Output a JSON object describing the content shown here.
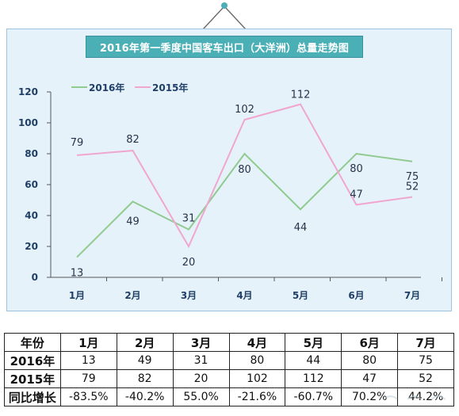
{
  "chart_data": {
    "type": "line",
    "title": "2016年第一季度中国客车出口（大洋洲）总量走势图",
    "categories": [
      "1月",
      "2月",
      "3月",
      "4月",
      "5月",
      "6月",
      "7月"
    ],
    "ylim": [
      0,
      120
    ],
    "yticks": [
      "0",
      "20",
      "40",
      "60",
      "80",
      "100",
      "120"
    ],
    "legend_position": "top-left",
    "grid": false,
    "series": [
      {
        "name": "2016年",
        "color": "#8fca8f",
        "values": [
          13,
          49,
          31,
          80,
          44,
          80,
          75
        ],
        "labels": [
          "13",
          "49",
          "31",
          "80",
          "44",
          "80",
          "75"
        ]
      },
      {
        "name": "2015年",
        "color": "#f0a6cf",
        "values": [
          79,
          82,
          20,
          102,
          112,
          47,
          52
        ],
        "labels": [
          "79",
          "82",
          "20",
          "102",
          "112",
          "47",
          "52"
        ]
      }
    ]
  },
  "table": {
    "header": [
      "年份",
      "1月",
      "2月",
      "3月",
      "4月",
      "5月",
      "6月",
      "7月"
    ],
    "rows": [
      [
        "2016年",
        "13",
        "49",
        "31",
        "80",
        "44",
        "80",
        "75"
      ],
      [
        "2015年",
        "79",
        "82",
        "20",
        "102",
        "112",
        "47",
        "52"
      ],
      [
        "同比增长",
        "-83.5%",
        "-40.2%",
        "55.0%",
        "-21.6%",
        "-60.7%",
        "70.2%",
        "44.2%"
      ]
    ]
  }
}
